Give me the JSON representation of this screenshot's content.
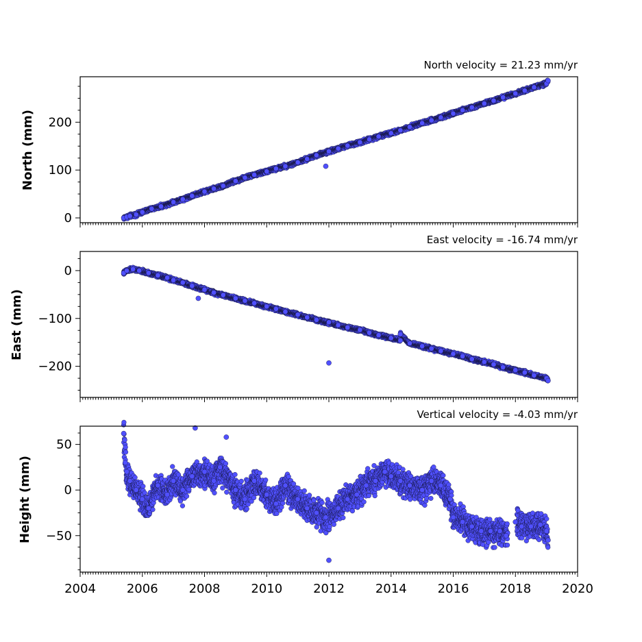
{
  "chart_data": [
    {
      "type": "scatter",
      "title": "North velocity = 21.23 mm/yr",
      "ylabel": "North (mm)",
      "velocity_mm_per_yr": 21.23,
      "xlim": [
        2004,
        2020
      ],
      "ylim": [
        -10,
        295
      ],
      "yticks": [
        0,
        100,
        200
      ],
      "xtick_labels_shown": false,
      "series": [
        {
          "color": "#5050ff",
          "points": [
            [
              2005.4,
              0
            ],
            [
              2005.5,
              2
            ],
            [
              2005.6,
              4
            ],
            [
              2005.8,
              7
            ],
            [
              2006.0,
              12
            ],
            [
              2006.3,
              19
            ],
            [
              2006.6,
              24
            ],
            [
              2007.0,
              33
            ],
            [
              2007.3,
              39
            ],
            [
              2007.6,
              46
            ],
            [
              2008.0,
              55
            ],
            [
              2008.3,
              61
            ],
            [
              2008.6,
              67
            ],
            [
              2009.0,
              77
            ],
            [
              2009.3,
              84
            ],
            [
              2009.6,
              90
            ],
            [
              2010.0,
              97
            ],
            [
              2010.3,
              103
            ],
            [
              2010.6,
              108
            ],
            [
              2011.0,
              116
            ],
            [
              2011.3,
              123
            ],
            [
              2011.6,
              131
            ],
            [
              2012.0,
              139
            ],
            [
              2012.3,
              145
            ],
            [
              2012.6,
              151
            ],
            [
              2013.0,
              158
            ],
            [
              2013.3,
              164
            ],
            [
              2013.6,
              170
            ],
            [
              2014.0,
              177
            ],
            [
              2014.3,
              183
            ],
            [
              2014.6,
              190
            ],
            [
              2015.0,
              198
            ],
            [
              2015.3,
              204
            ],
            [
              2015.6,
              210
            ],
            [
              2016.0,
              218
            ],
            [
              2016.3,
              225
            ],
            [
              2016.6,
              231
            ],
            [
              2017.0,
              239
            ],
            [
              2017.3,
              245
            ],
            [
              2017.6,
              252
            ],
            [
              2018.0,
              260
            ],
            [
              2018.3,
              266
            ],
            [
              2018.6,
              273
            ],
            [
              2019.0,
              281
            ],
            [
              2019.05,
              287
            ],
            [
              2011.9,
              108
            ]
          ]
        }
      ]
    },
    {
      "type": "scatter",
      "title": "East velocity = -16.74 mm/yr",
      "ylabel": "East (mm)",
      "velocity_mm_per_yr": -16.74,
      "xlim": [
        2004,
        2020
      ],
      "ylim": [
        -265,
        40
      ],
      "yticks": [
        0,
        -100,
        -200
      ],
      "xtick_labels_shown": false,
      "series": [
        {
          "color": "#5050ff",
          "points": [
            [
              2005.4,
              -5
            ],
            [
              2005.5,
              0
            ],
            [
              2005.7,
              3
            ],
            [
              2005.9,
              0
            ],
            [
              2006.2,
              -5
            ],
            [
              2006.5,
              -10
            ],
            [
              2006.8,
              -15
            ],
            [
              2007.0,
              -20
            ],
            [
              2007.3,
              -25
            ],
            [
              2007.6,
              -32
            ],
            [
              2008.0,
              -40
            ],
            [
              2008.3,
              -46
            ],
            [
              2008.6,
              -51
            ],
            [
              2009.0,
              -58
            ],
            [
              2009.3,
              -63
            ],
            [
              2009.6,
              -68
            ],
            [
              2010.0,
              -75
            ],
            [
              2010.3,
              -80
            ],
            [
              2010.6,
              -86
            ],
            [
              2011.0,
              -92
            ],
            [
              2011.3,
              -98
            ],
            [
              2011.6,
              -103
            ],
            [
              2012.0,
              -108
            ],
            [
              2012.3,
              -114
            ],
            [
              2012.6,
              -119
            ],
            [
              2013.0,
              -124
            ],
            [
              2013.3,
              -130
            ],
            [
              2013.6,
              -135
            ],
            [
              2014.0,
              -141
            ],
            [
              2014.3,
              -146
            ],
            [
              2014.6,
              -152
            ],
            [
              2015.0,
              -158
            ],
            [
              2015.3,
              -163
            ],
            [
              2015.6,
              -168
            ],
            [
              2016.0,
              -174
            ],
            [
              2016.3,
              -179
            ],
            [
              2016.6,
              -185
            ],
            [
              2017.0,
              -191
            ],
            [
              2017.3,
              -196
            ],
            [
              2017.6,
              -202
            ],
            [
              2018.0,
              -208
            ],
            [
              2018.3,
              -213
            ],
            [
              2018.6,
              -219
            ],
            [
              2019.0,
              -225
            ],
            [
              2019.05,
              -230
            ],
            [
              2012.0,
              -193
            ],
            [
              2007.8,
              -58
            ],
            [
              2014.3,
              -133
            ]
          ]
        }
      ]
    },
    {
      "type": "scatter",
      "title": "Vertical velocity = -4.03 mm/yr",
      "ylabel": "Height (mm)",
      "velocity_mm_per_yr": -4.03,
      "xlim": [
        2004,
        2020
      ],
      "ylim": [
        -90,
        70
      ],
      "yticks": [
        50,
        0,
        -50
      ],
      "xticks": [
        2004,
        2006,
        2008,
        2010,
        2012,
        2014,
        2016,
        2018,
        2020
      ],
      "xtick_labels_shown": true,
      "series": [
        {
          "color": "#5050ff",
          "points": [
            [
              2005.4,
              62
            ],
            [
              2005.45,
              30
            ],
            [
              2005.5,
              20
            ],
            [
              2005.6,
              10
            ],
            [
              2005.8,
              0
            ],
            [
              2006.0,
              -10
            ],
            [
              2006.2,
              -20
            ],
            [
              2006.5,
              5
            ],
            [
              2006.8,
              -5
            ],
            [
              2007.0,
              10
            ],
            [
              2007.3,
              0
            ],
            [
              2007.6,
              15
            ],
            [
              2007.7,
              68
            ],
            [
              2008.0,
              20
            ],
            [
              2008.3,
              10
            ],
            [
              2008.5,
              25
            ],
            [
              2008.7,
              58
            ],
            [
              2009.0,
              0
            ],
            [
              2009.3,
              -10
            ],
            [
              2009.6,
              10
            ],
            [
              2010.0,
              -5
            ],
            [
              2010.3,
              -15
            ],
            [
              2010.6,
              5
            ],
            [
              2011.0,
              -10
            ],
            [
              2011.3,
              -20
            ],
            [
              2011.6,
              -25
            ],
            [
              2011.9,
              -30
            ],
            [
              2012.0,
              -77
            ],
            [
              2012.3,
              -20
            ],
            [
              2012.6,
              -10
            ],
            [
              2012.9,
              -5
            ],
            [
              2013.2,
              5
            ],
            [
              2013.5,
              10
            ],
            [
              2013.8,
              20
            ],
            [
              2014.0,
              15
            ],
            [
              2014.3,
              10
            ],
            [
              2014.6,
              5
            ],
            [
              2015.0,
              0
            ],
            [
              2015.3,
              10
            ],
            [
              2015.6,
              5
            ],
            [
              2015.9,
              -10
            ],
            [
              2016.0,
              -30
            ],
            [
              2016.3,
              -35
            ],
            [
              2016.6,
              -40
            ],
            [
              2016.9,
              -45
            ],
            [
              2017.2,
              -45
            ],
            [
              2017.5,
              -45
            ],
            [
              2017.7,
              -50
            ],
            [
              2018.0,
              -35
            ],
            [
              2018.2,
              -40
            ],
            [
              2018.5,
              -40
            ],
            [
              2018.8,
              -38
            ],
            [
              2019.0,
              -45
            ],
            [
              2019.05,
              -55
            ]
          ]
        }
      ]
    }
  ]
}
